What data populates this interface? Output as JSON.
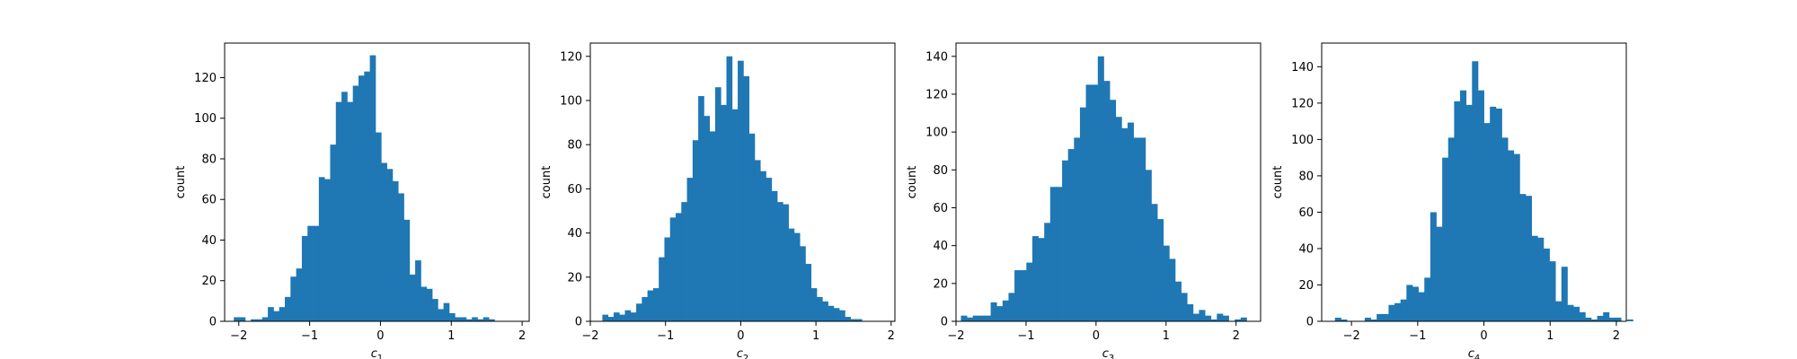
{
  "figure": {
    "facecolor": "#ffffff"
  },
  "chart_data": [
    {
      "type": "histogram",
      "xlabel": "c",
      "xlabel_subscript": "1",
      "ylabel": "count",
      "xlim": [
        -2.2,
        2.1
      ],
      "ylim": [
        0,
        137
      ],
      "xticks": [
        -2,
        -1,
        0,
        1,
        2
      ],
      "yticks": [
        0,
        20,
        40,
        60,
        80,
        100,
        120
      ],
      "bar_color": "#1f77b4",
      "bin_start": -2.07,
      "bin_width": 0.08,
      "counts": [
        2,
        2,
        0,
        1,
        1,
        2,
        7,
        5,
        7,
        12,
        22,
        26,
        42,
        47,
        47,
        71,
        70,
        87,
        108,
        113,
        108,
        116,
        121,
        123,
        131,
        93,
        78,
        75,
        69,
        63,
        50,
        23,
        30,
        17,
        16,
        11,
        6,
        9,
        4,
        2,
        2,
        1,
        2,
        1,
        2,
        1,
        0,
        0,
        0,
        0
      ]
    },
    {
      "type": "histogram",
      "xlabel": "c",
      "xlabel_subscript": "2",
      "ylabel": "count",
      "xlim": [
        -2.0,
        2.05
      ],
      "ylim": [
        0,
        126
      ],
      "xticks": [
        -2,
        -1,
        0,
        1,
        2
      ],
      "yticks": [
        0,
        20,
        40,
        60,
        80,
        100,
        120
      ],
      "bar_color": "#1f77b4",
      "bin_start": -1.84,
      "bin_width": 0.075,
      "counts": [
        3,
        2,
        4,
        3,
        5,
        4,
        8,
        11,
        14,
        15,
        29,
        38,
        47,
        49,
        54,
        65,
        82,
        102,
        93,
        86,
        106,
        98,
        120,
        96,
        118,
        111,
        85,
        73,
        68,
        65,
        59,
        54,
        53,
        42,
        40,
        34,
        26,
        15,
        11,
        9,
        7,
        6,
        5,
        2,
        1,
        1,
        0,
        0,
        0,
        0
      ]
    },
    {
      "type": "histogram",
      "xlabel": "c",
      "xlabel_subscript": "3",
      "ylabel": "count",
      "xlim": [
        -2.0,
        2.35
      ],
      "ylim": [
        0,
        147
      ],
      "xticks": [
        -2,
        -1,
        0,
        1,
        2
      ],
      "yticks": [
        0,
        20,
        40,
        60,
        80,
        100,
        120,
        140
      ],
      "bar_color": "#1f77b4",
      "bin_start": -1.93,
      "bin_width": 0.085,
      "counts": [
        3,
        2,
        3,
        3,
        3,
        10,
        8,
        11,
        15,
        27,
        27,
        31,
        45,
        44,
        52,
        71,
        71,
        85,
        91,
        97,
        113,
        125,
        125,
        140,
        127,
        117,
        108,
        102,
        105,
        97,
        97,
        80,
        62,
        54,
        40,
        33,
        21,
        15,
        9,
        4,
        6,
        3,
        1,
        4,
        3,
        0,
        1,
        2,
        0,
        0
      ]
    },
    {
      "type": "histogram",
      "xlabel": "c",
      "xlabel_subscript": "4",
      "ylabel": "count",
      "xlim": [
        -2.45,
        2.15
      ],
      "ylim": [
        0,
        153
      ],
      "xticks": [
        -2,
        -1,
        0,
        1,
        2
      ],
      "yticks": [
        0,
        20,
        40,
        60,
        80,
        100,
        120,
        140
      ],
      "bar_color": "#1f77b4",
      "bin_start": -2.25,
      "bin_width": 0.09,
      "counts": [
        2,
        1,
        0,
        0,
        0,
        2,
        1,
        4,
        4,
        9,
        10,
        12,
        20,
        19,
        16,
        24,
        60,
        52,
        90,
        101,
        121,
        127,
        119,
        143,
        127,
        109,
        118,
        117,
        101,
        94,
        92,
        70,
        69,
        47,
        46,
        40,
        33,
        11,
        30,
        9,
        8,
        5,
        2,
        1,
        3,
        5,
        2,
        2,
        0,
        1
      ]
    }
  ]
}
